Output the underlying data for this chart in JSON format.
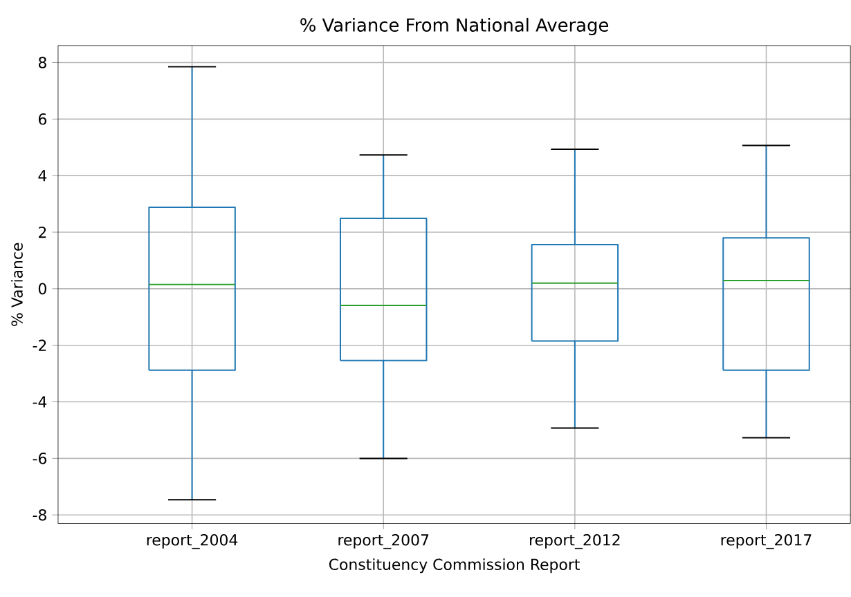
{
  "chart_data": {
    "type": "box",
    "title": "% Variance From National Average",
    "xlabel": "Constituency Commission Report",
    "ylabel": "% Variance",
    "categories": [
      "report_2004",
      "report_2007",
      "report_2012",
      "report_2017"
    ],
    "boxes": [
      {
        "low": -7.46,
        "q1": -2.88,
        "median": 0.15,
        "q3": 2.88,
        "high": 7.85
      },
      {
        "low": -6.0,
        "q1": -2.54,
        "median": -0.59,
        "q3": 2.49,
        "high": 4.73
      },
      {
        "low": -4.93,
        "q1": -1.85,
        "median": 0.2,
        "q3": 1.56,
        "high": 4.93
      },
      {
        "low": -5.27,
        "q1": -2.88,
        "median": 0.29,
        "q3": 1.8,
        "high": 5.07
      }
    ],
    "color": "#1f77b4",
    "ylim": [
      -8.3,
      8.6
    ],
    "yticks": [
      -8,
      -6,
      -4,
      -2,
      0,
      2,
      4,
      6,
      8
    ],
    "grid": true
  }
}
